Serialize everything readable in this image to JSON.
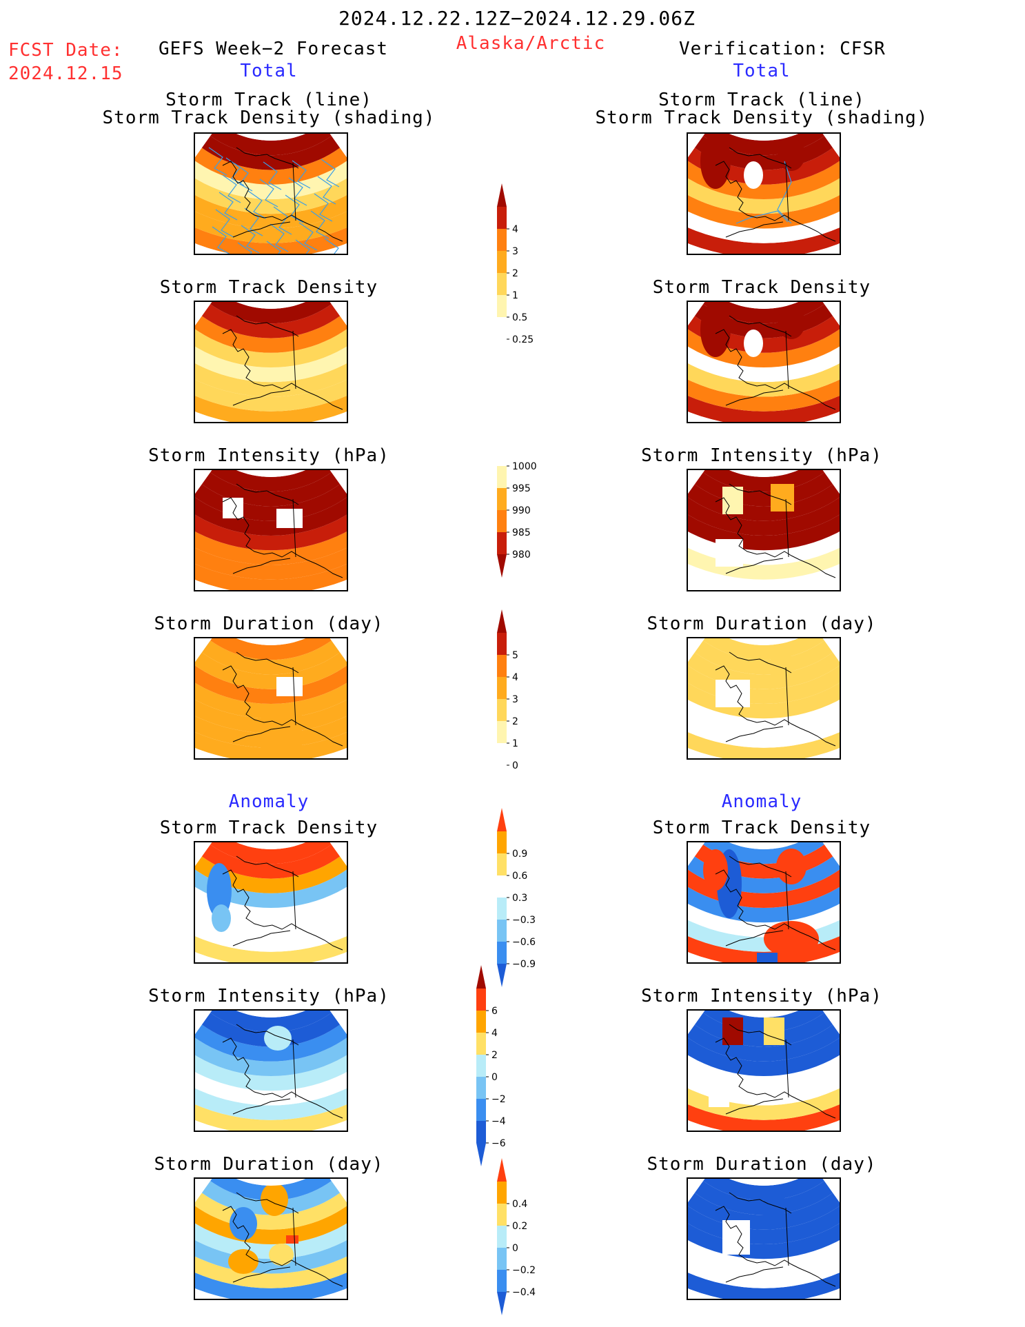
{
  "header": {
    "period": "2024.12.22.12Z−2024.12.29.06Z",
    "fcst_label": "FCST Date:",
    "fcst_date": "2024.12.15",
    "region": "Alaska/Arctic",
    "left_title": "GEFS Week−2 Forecast",
    "right_title": "Verification: CFSR",
    "total_label": "Total",
    "anomaly_label": "Anomaly"
  },
  "colors": {
    "text_red": "#ff3030",
    "text_blue": "#2a2aff",
    "warm": [
      "#fff5b0",
      "#ffd75a",
      "#ffab1e",
      "#ff8010",
      "#ef4010",
      "#c81e0a",
      "#a00a00"
    ],
    "anom_pos": [
      "#ffe066",
      "#ffa500",
      "#ff4010"
    ],
    "anom_neg": [
      "#b8ecf8",
      "#78c4f4",
      "#3a8ef0",
      "#1d5cd6"
    ],
    "track_line": "#3a9ee8"
  },
  "panels": {
    "row1_title_a": "Storm Track (line)",
    "row1_title_b": "Storm Track Density (shading)",
    "density": "Storm Track Density",
    "intensity": "Storm Intensity (hPa)",
    "duration": "Storm Duration (day)"
  },
  "chart_data": [
    {
      "type": "heatmap",
      "name": "GEFS Total Storm Track + Density",
      "scale": "density"
    },
    {
      "type": "heatmap",
      "name": "CFSR Total Storm Track + Density",
      "scale": "density"
    },
    {
      "type": "heatmap",
      "name": "GEFS Total Storm Track Density",
      "scale": "density"
    },
    {
      "type": "heatmap",
      "name": "CFSR Total Storm Track Density",
      "scale": "density"
    },
    {
      "type": "heatmap",
      "name": "GEFS Total Storm Intensity (hPa)",
      "scale": "intensity"
    },
    {
      "type": "heatmap",
      "name": "CFSR Total Storm Intensity (hPa)",
      "scale": "intensity"
    },
    {
      "type": "heatmap",
      "name": "GEFS Total Storm Duration (day)",
      "scale": "duration"
    },
    {
      "type": "heatmap",
      "name": "CFSR Total Storm Duration (day)",
      "scale": "duration"
    },
    {
      "type": "heatmap",
      "name": "GEFS Anomaly Storm Track Density",
      "scale": "anom_density"
    },
    {
      "type": "heatmap",
      "name": "CFSR Anomaly Storm Track Density",
      "scale": "anom_density"
    },
    {
      "type": "heatmap",
      "name": "GEFS Anomaly Storm Intensity (hPa)",
      "scale": "anom_intensity"
    },
    {
      "type": "heatmap",
      "name": "CFSR Anomaly Storm Intensity (hPa)",
      "scale": "anom_intensity"
    },
    {
      "type": "heatmap",
      "name": "GEFS Anomaly Storm Duration (day)",
      "scale": "anom_duration"
    },
    {
      "type": "heatmap",
      "name": "CFSR Anomaly Storm Duration (day)",
      "scale": "anom_duration"
    }
  ],
  "colorbars": {
    "density": {
      "ticks": [
        "4",
        "3",
        "2",
        "1",
        "0.5",
        "0.25"
      ]
    },
    "intensity": {
      "ticks": [
        "1000",
        "995",
        "990",
        "985",
        "980"
      ]
    },
    "duration": {
      "ticks": [
        "5",
        "4",
        "3",
        "2",
        "1",
        "0"
      ]
    },
    "anom_density": {
      "ticks": [
        "0.9",
        "0.6",
        "0.3",
        "−0.3",
        "−0.6",
        "−0.9"
      ]
    },
    "anom_intensity": {
      "ticks": [
        "6",
        "4",
        "2",
        "0",
        "−2",
        "−4",
        "−6"
      ]
    },
    "anom_duration": {
      "ticks": [
        "0.4",
        "0.2",
        "0",
        "−0.2",
        "−0.4"
      ]
    }
  }
}
